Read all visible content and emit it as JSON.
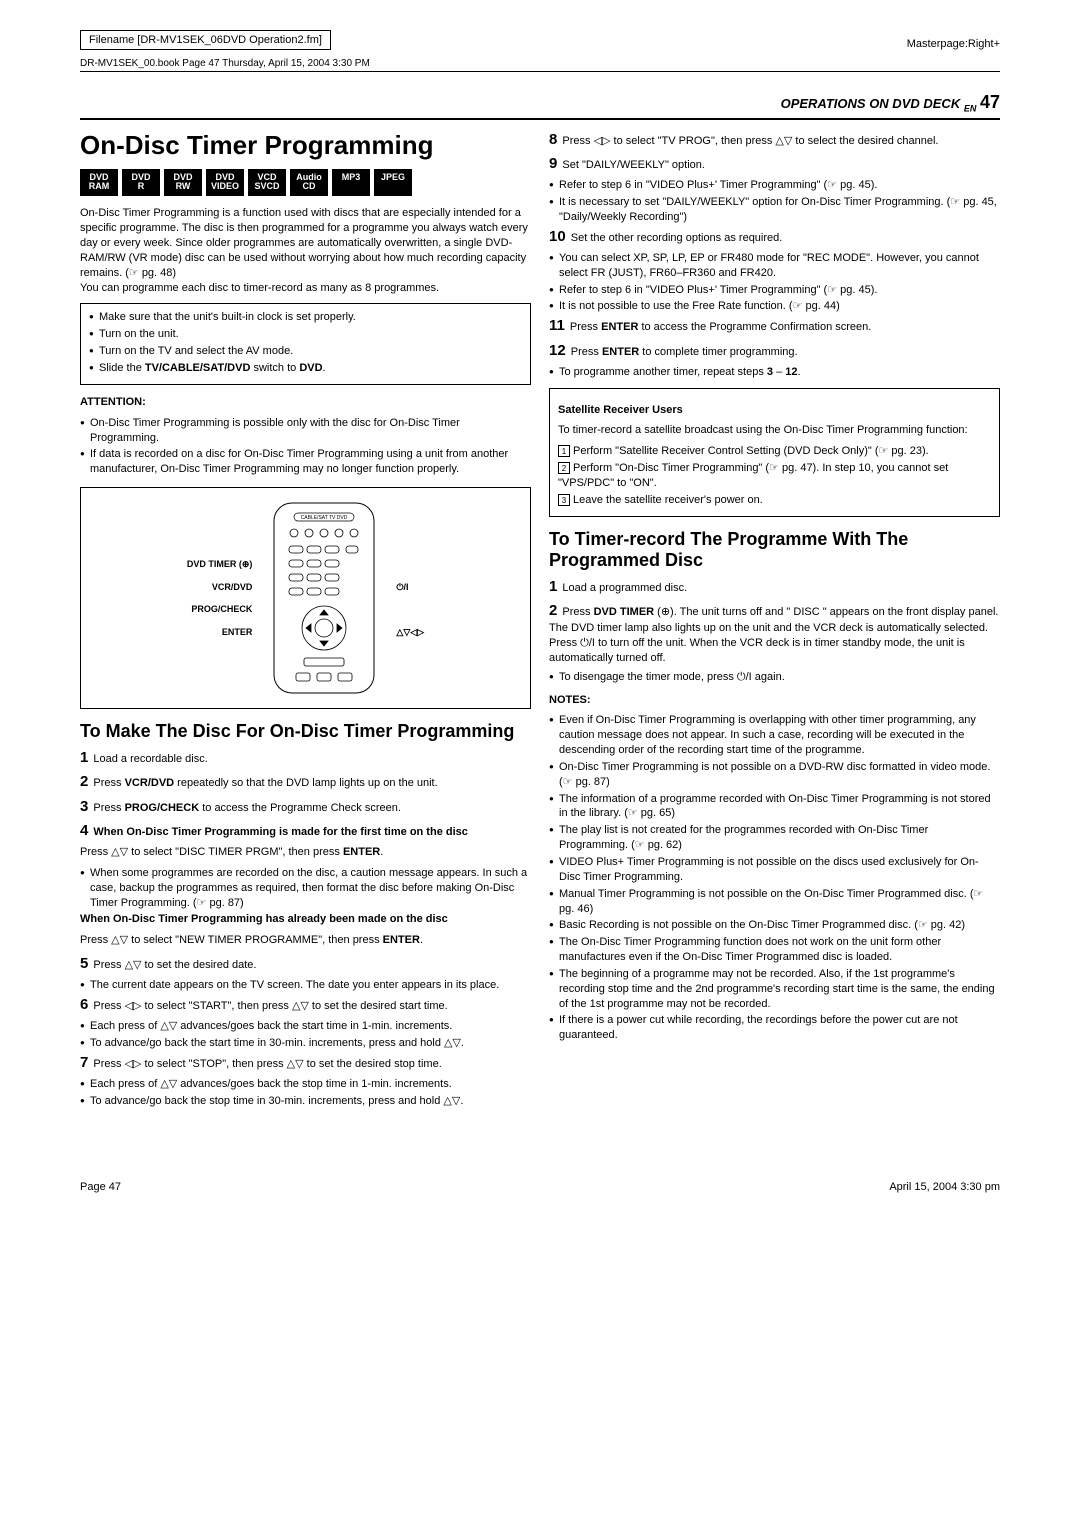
{
  "header": {
    "filename": "Filename [DR-MV1SEK_06DVD Operation2.fm]",
    "bookinfo": "DR-MV1SEK_00.book  Page 47  Thursday, April 15, 2004  3:30 PM",
    "masterpage": "Masterpage:Right+",
    "section": "OPERATIONS ON DVD DECK",
    "section_en": "EN",
    "pagenum": "47"
  },
  "title": "On-Disc Timer Programming",
  "badges": [
    {
      "l1": "DVD",
      "l2": "RAM"
    },
    {
      "l1": "DVD",
      "l2": "R"
    },
    {
      "l1": "DVD",
      "l2": "RW"
    },
    {
      "l1": "DVD",
      "l2": "VIDEO"
    },
    {
      "l1": "VCD",
      "l2": "SVCD"
    },
    {
      "l1": "Audio",
      "l2": "CD"
    },
    {
      "l1": "MP3",
      "l2": ""
    },
    {
      "l1": "JPEG",
      "l2": ""
    }
  ],
  "intro": "On-Disc Timer Programming is a function used with discs that are especially intended for a specific programme. The disc is then programmed for a programme you always watch every day or every week. Since older programmes are automatically overwritten, a single DVD-RAM/RW (VR mode) disc can be used without worrying about how much recording capacity remains. (☞ pg. 48)\nYou can programme each disc to timer-record as many as 8 programmes.",
  "box1": [
    "Make sure that the unit's built-in clock is set properly.",
    "Turn on the unit.",
    "Turn on the TV and select the AV mode.",
    "Slide the TV/CABLE/SAT/DVD switch to DVD."
  ],
  "attention_label": "ATTENTION:",
  "attention_items": [
    "On-Disc Timer Programming is possible only with the disc for On-Disc Timer Programming.",
    "If data is recorded on a disc for On-Disc Timer Programming using a unit from another manufacturer, On-Disc Timer Programming may no longer function properly."
  ],
  "remote_labels": {
    "a": "DVD TIMER (⊕)",
    "b": "VCR/DVD",
    "c": "PROG/CHECK",
    "d": "ENTER",
    "side_right_top": "⏻/I",
    "side_right_bottom": "△▽◁▷",
    "switch": "CABLE/SAT  TV  DVD"
  },
  "sub1_title": "To Make The Disc For On-Disc Timer Programming",
  "sub1": {
    "s1": "Load a recordable disc.",
    "s2": "Press VCR/DVD repeatedly so that the DVD lamp lights up on the unit.",
    "s3": "Press PROG/CHECK to access the Programme Check screen.",
    "s4head": "When On-Disc Timer Programming is made for the first time on the disc",
    "s4a": "Press △▽ to select \"DISC TIMER PRGM\", then press ENTER.",
    "s4b": "When some programmes are recorded on the disc, a caution message appears. In such a case, backup the programmes as required, then format the disc before making On-Disc Timer Programming. (☞ pg. 87)",
    "s4head2": "When On-Disc Timer Programming has already been made on the disc",
    "s4c": "Press △▽ to select \"NEW TIMER PROGRAMME\", then press ENTER.",
    "s5": "Press △▽ to set the desired date.",
    "s5b": "The current date appears on the TV screen. The date you enter appears in its place.",
    "s6": "Press ◁▷ to select \"START\", then press △▽ to set the desired start time.",
    "s6b1": "Each press of △▽ advances/goes back the start time in 1-min. increments.",
    "s6b2": "To advance/go back the start time in 30-min. increments, press and hold △▽.",
    "s7": "Press ◁▷ to select \"STOP\", then press △▽ to set the desired stop time.",
    "s7b1": "Each press of △▽ advances/goes back the stop time in 1-min. increments.",
    "s7b2": "To advance/go back the stop time in 30-min. increments, press and hold △▽."
  },
  "right": {
    "s8": "Press ◁▷ to select \"TV PROG\", then press △▽ to select the desired channel.",
    "s9": "Set \"DAILY/WEEKLY\" option.",
    "s9b1": "Refer to step 6 in \"VIDEO Plus+' Timer Programming\" (☞ pg. 45).",
    "s9b2": "It is necessary to set \"DAILY/WEEKLY\" option for On-Disc Timer Programming. (☞ pg. 45, \"Daily/Weekly Recording\")",
    "s10": "Set the other recording options as required.",
    "s10b1": "You can select XP, SP, LP, EP or FR480 mode for \"REC MODE\". However, you cannot select FR (JUST), FR60–FR360 and FR420.",
    "s10b2": "Refer to step 6 in \"VIDEO Plus+' Timer Programming\" (☞ pg. 45).",
    "s10b3": "It is not possible to use the Free Rate function. (☞ pg. 44)",
    "s11": "Press ENTER to access the Programme Confirmation screen.",
    "s12": "Press ENTER to complete timer programming.",
    "s12b": "To programme another timer, repeat steps 3 – 12."
  },
  "sat_heading": "Satellite Receiver Users",
  "sat_intro": "To timer-record a satellite broadcast using the On-Disc Timer Programming function:",
  "sat": [
    "Perform \"Satellite Receiver Control Setting (DVD Deck Only)\" (☞ pg. 23).",
    "Perform \"On-Disc Timer Programming\" (☞ pg. 47). In step 10, you cannot set \"VPS/PDC\" to \"ON\".",
    "Leave the satellite receiver's power on."
  ],
  "sub2_title": "To Timer-record The Programme With The Programmed Disc",
  "sub2": {
    "s1": "Load a programmed disc.",
    "s2": "Press DVD TIMER (⊕). The unit turns off and \" DISC \" appears on the front display panel. The DVD timer lamp also lights up on the unit and the VCR deck is automatically selected. Press ⏻/I to turn off the unit. When the VCR deck is in timer standby mode, the unit is automatically turned off.",
    "s2b": "To disengage the timer mode, press ⏻/I again."
  },
  "notes_label": "NOTES:",
  "notes": [
    "Even if On-Disc Timer Programming is overlapping with other timer programming, any caution message does not appear. In such a case, recording will be executed in the descending order of the recording start time of the programme.",
    "On-Disc Timer Programming is not possible on a DVD-RW disc formatted in video mode. (☞ pg. 87)",
    "The information of a programme recorded with On-Disc Timer Programming is not stored in the library. (☞ pg. 65)",
    "The play list is not created for the programmes recorded with On-Disc Timer Programming. (☞ pg. 62)",
    "VIDEO Plus+ Timer Programming is not possible on the discs used exclusively for On-Disc Timer Programming.",
    "Manual Timer Programming is not possible on the On-Disc Timer Programmed disc. (☞ pg. 46)",
    "Basic Recording is not possible on the On-Disc Timer Programmed disc. (☞ pg. 42)",
    "The On-Disc Timer Programming function does not work on the unit form other manufactures even if the On-Disc Timer Programmed disc is loaded.",
    "The beginning of a programme may not be recorded. Also, if the 1st programme's recording stop time and the 2nd programme's recording start time is the same, the ending of the 1st programme may not be recorded.",
    "If there is a power cut while recording, the recordings before the power cut are not guaranteed."
  ],
  "footer": {
    "left": "Page 47",
    "right": "April 15, 2004  3:30 pm"
  }
}
